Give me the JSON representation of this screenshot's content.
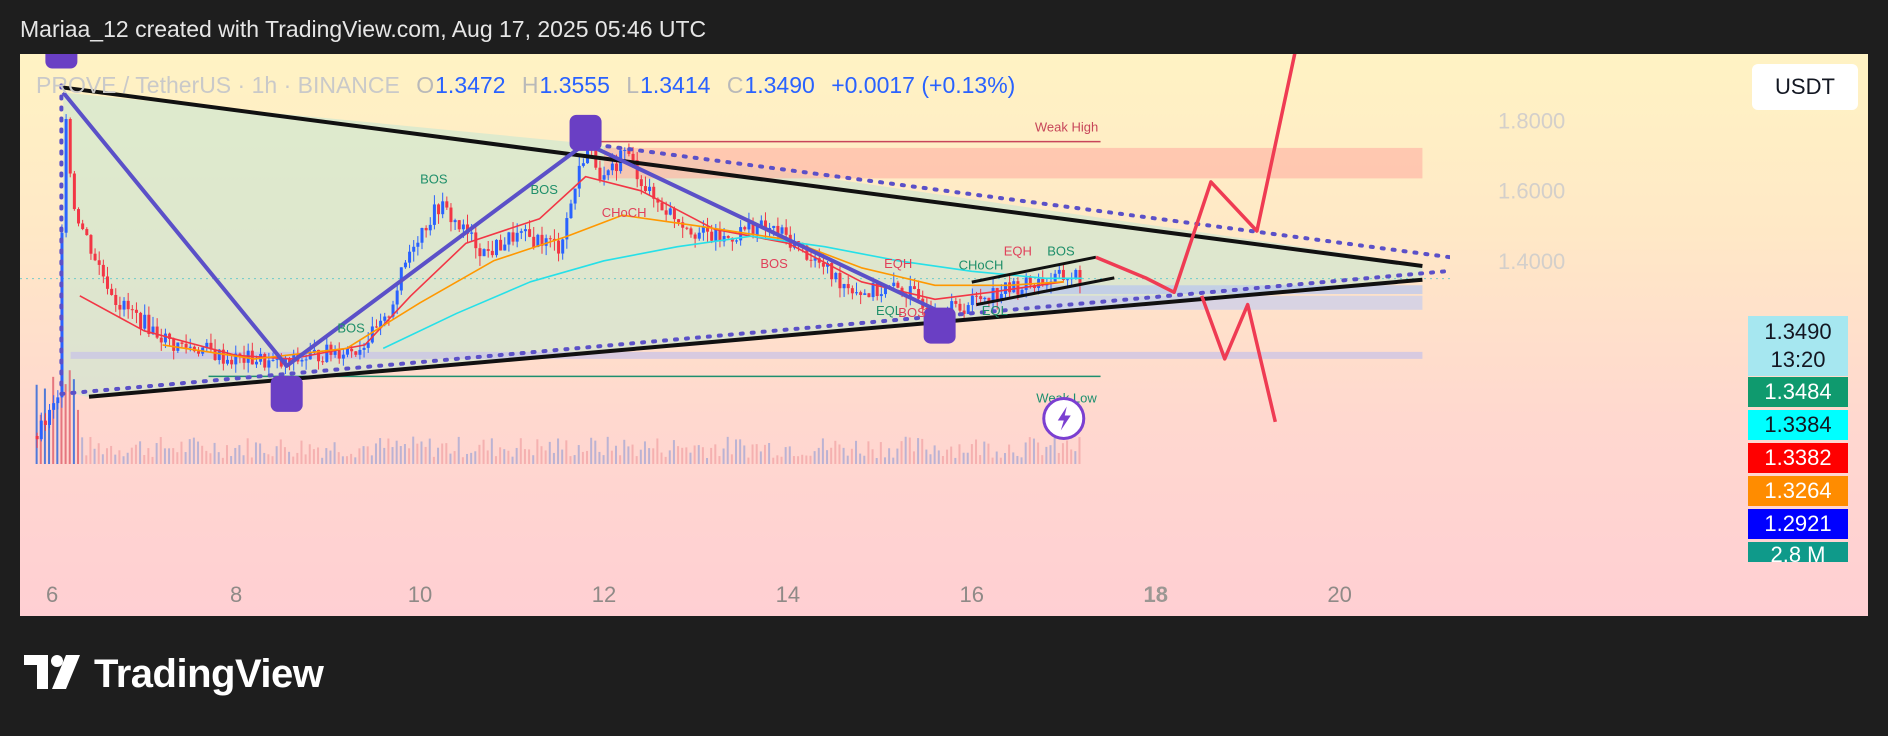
{
  "header": {
    "title": "Mariaa_12 created with TradingView.com, Aug 17, 2025 05:46 UTC"
  },
  "brand": {
    "name": "TradingView",
    "logo_icon": "tradingview-logo-icon"
  },
  "colors": {
    "bull": "#2962ff",
    "bear": "#f23645",
    "triangle_line": "#111111",
    "zigzag": "#5b50c8",
    "target_arrows": "#ef3b53",
    "ema_fast": "#f23645",
    "ema_mid": "#ff9800",
    "ema_slow": "#26e0e8"
  },
  "chart_data": {
    "type": "candlestick",
    "symbol": "PROVE / TetherUS · 1h · BINANCE",
    "legend": {
      "open_label": "O",
      "open": "1.3472",
      "high_label": "H",
      "high": "1.3555",
      "low_label": "L",
      "low": "1.3414",
      "close_label": "C",
      "close": "1.3490",
      "change": "+0.0017 (+0.13%)"
    },
    "quote_currency": "USDT",
    "x_ticks": [
      "6",
      "8",
      "10",
      "12",
      "14",
      "16",
      "18",
      "20"
    ],
    "x_range": [
      5.65,
      21.2
    ],
    "y_ticks": [
      "1.8000",
      "1.6000",
      "1.4000"
    ],
    "y_range": [
      0.82,
      1.99
    ],
    "price_tags": [
      {
        "value": "1.3490",
        "extra": "13:20",
        "bg": "#a6e7f0",
        "color": "#131722"
      },
      {
        "value": "1.3484",
        "bg": "#0f9a6e",
        "color": "#ffffff"
      },
      {
        "value": "1.3384",
        "bg": "#00ffff",
        "color": "#131722"
      },
      {
        "value": "1.3382",
        "bg": "#ff0000",
        "color": "#ffffff"
      },
      {
        "value": "1.3264",
        "bg": "#ff8c00",
        "color": "#ffffff"
      },
      {
        "value": "1.2921",
        "bg": "#0000ff",
        "color": "#ffffff"
      },
      {
        "value": "2.8 M",
        "bg": "#0f9a8a",
        "color": "#ffffff"
      }
    ],
    "price_path": [
      [
        5.82,
        0.9
      ],
      [
        6.05,
        1.0
      ],
      [
        6.12,
        1.88
      ],
      [
        6.2,
        1.58
      ],
      [
        6.3,
        1.5
      ],
      [
        6.5,
        1.38
      ],
      [
        6.7,
        1.28
      ],
      [
        7.0,
        1.22
      ],
      [
        7.3,
        1.16
      ],
      [
        7.6,
        1.15
      ],
      [
        7.9,
        1.12
      ],
      [
        8.2,
        1.12
      ],
      [
        8.45,
        1.1
      ],
      [
        8.7,
        1.12
      ],
      [
        9.0,
        1.14
      ],
      [
        9.3,
        1.15
      ],
      [
        9.6,
        1.22
      ],
      [
        9.9,
        1.45
      ],
      [
        10.2,
        1.56
      ],
      [
        10.4,
        1.5
      ],
      [
        10.7,
        1.42
      ],
      [
        11.0,
        1.47
      ],
      [
        11.3,
        1.46
      ],
      [
        11.5,
        1.44
      ],
      [
        11.8,
        1.74
      ],
      [
        12.0,
        1.62
      ],
      [
        12.2,
        1.72
      ],
      [
        12.5,
        1.58
      ],
      [
        12.8,
        1.52
      ],
      [
        13.0,
        1.48
      ],
      [
        13.3,
        1.46
      ],
      [
        13.6,
        1.5
      ],
      [
        13.9,
        1.48
      ],
      [
        14.2,
        1.42
      ],
      [
        14.5,
        1.35
      ],
      [
        14.8,
        1.31
      ],
      [
        15.2,
        1.32
      ],
      [
        15.5,
        1.28
      ],
      [
        15.7,
        1.26
      ],
      [
        15.9,
        1.27
      ],
      [
        16.1,
        1.3
      ],
      [
        16.4,
        1.32
      ],
      [
        16.7,
        1.34
      ],
      [
        16.95,
        1.35
      ],
      [
        17.1,
        1.36
      ],
      [
        17.2,
        1.349
      ]
    ],
    "ema_lines": [
      {
        "name": "ema-fast",
        "color": "#f23645",
        "points": [
          [
            6.3,
            1.3
          ],
          [
            7.0,
            1.2
          ],
          [
            8.0,
            1.13
          ],
          [
            8.6,
            1.12
          ],
          [
            9.4,
            1.16
          ],
          [
            9.9,
            1.3
          ],
          [
            10.5,
            1.45
          ],
          [
            11.3,
            1.52
          ],
          [
            11.8,
            1.64
          ],
          [
            12.4,
            1.6
          ],
          [
            13.2,
            1.49
          ],
          [
            14.0,
            1.45
          ],
          [
            14.8,
            1.34
          ],
          [
            15.6,
            1.29
          ],
          [
            16.2,
            1.31
          ],
          [
            17.0,
            1.34
          ]
        ]
      },
      {
        "name": "ema-mid",
        "color": "#ff9800",
        "points": [
          [
            7.2,
            1.16
          ],
          [
            8.2,
            1.12
          ],
          [
            9.2,
            1.15
          ],
          [
            10.0,
            1.28
          ],
          [
            10.8,
            1.4
          ],
          [
            11.6,
            1.47
          ],
          [
            12.2,
            1.53
          ],
          [
            13.0,
            1.5
          ],
          [
            14.0,
            1.46
          ],
          [
            14.8,
            1.38
          ],
          [
            15.6,
            1.33
          ],
          [
            16.4,
            1.33
          ],
          [
            17.0,
            1.34
          ]
        ]
      },
      {
        "name": "ema-slow",
        "color": "#26e0e8",
        "points": [
          [
            9.6,
            1.15
          ],
          [
            10.4,
            1.25
          ],
          [
            11.2,
            1.34
          ],
          [
            12.0,
            1.4
          ],
          [
            12.8,
            1.44
          ],
          [
            13.6,
            1.47
          ],
          [
            14.4,
            1.44
          ],
          [
            15.2,
            1.4
          ],
          [
            16.0,
            1.37
          ],
          [
            16.8,
            1.35
          ],
          [
            17.2,
            1.35
          ]
        ]
      }
    ],
    "triangle": {
      "upper": [
        [
          6.1,
          1.895
        ],
        [
          20.9,
          1.385
        ]
      ],
      "lower": [
        [
          6.4,
          1.012
        ],
        [
          20.9,
          1.346
        ]
      ],
      "upper_dotted": [
        [
          11.8,
          1.735
        ],
        [
          21.2,
          1.41
        ]
      ],
      "lower_dotted": [
        [
          6.1,
          1.02
        ],
        [
          21.2,
          1.371
        ]
      ]
    },
    "zigzag": [
      [
        6.12,
        1.88
      ],
      [
        8.55,
        1.1
      ],
      [
        11.8,
        1.735
      ],
      [
        15.65,
        1.255
      ]
    ],
    "pivot_markers": [
      [
        6.1,
        2.0
      ],
      [
        8.55,
        1.02
      ],
      [
        11.8,
        1.765
      ],
      [
        15.65,
        1.215
      ]
    ],
    "channel": {
      "top": [
        [
          16.0,
          1.339
        ],
        [
          17.35,
          1.41
        ]
      ],
      "bottom": [
        [
          16.05,
          1.275
        ],
        [
          17.55,
          1.351
        ]
      ]
    },
    "target_arrows": [
      [
        [
          17.35,
          1.41
        ],
        [
          17.9,
          1.35
        ],
        [
          18.2,
          1.31
        ],
        [
          18.6,
          1.625
        ],
        [
          19.1,
          1.485
        ],
        [
          19.6,
          2.1
        ]
      ],
      [
        [
          18.5,
          1.3
        ],
        [
          18.75,
          1.12
        ],
        [
          19.0,
          1.275
        ],
        [
          19.3,
          0.94
        ]
      ]
    ],
    "zones": [
      {
        "name": "weak-high-zone",
        "x": [
          12.0,
          20.9
        ],
        "y": [
          1.635,
          1.722
        ],
        "color": "#ffb8a6"
      },
      {
        "name": "supply-box",
        "x": [
          16.0,
          20.9
        ],
        "y": [
          1.305,
          1.33
        ],
        "color": "#b8c6f0"
      },
      {
        "name": "supply-box-2",
        "x": [
          16.0,
          20.9
        ],
        "y": [
          1.26,
          1.3
        ],
        "color": "#c7cdee"
      },
      {
        "name": "demand-box",
        "x": [
          6.2,
          20.9
        ],
        "y": [
          1.12,
          1.14
        ],
        "color": "#c8c2e8"
      }
    ],
    "weak_high": {
      "label": "Weak High",
      "y": 1.74,
      "x": [
        11.9,
        17.4
      ],
      "color": "#c7465a"
    },
    "weak_low": {
      "label": "Weak Low",
      "y": 1.07,
      "x": [
        7.7,
        17.4
      ],
      "color": "#1d8f6e"
    },
    "annotations": [
      {
        "text": "BOS",
        "x": 10.15,
        "y": 1.62,
        "color": "#1f8f6a"
      },
      {
        "text": "BOS",
        "x": 11.35,
        "y": 1.59,
        "color": "#1f8f6a"
      },
      {
        "text": "BOS",
        "x": 9.25,
        "y": 1.195,
        "color": "#1f8f6a"
      },
      {
        "text": "CHoCH",
        "x": 12.22,
        "y": 1.525,
        "color": "#e0405a"
      },
      {
        "text": "BOS",
        "x": 13.85,
        "y": 1.38,
        "color": "#e0405a"
      },
      {
        "text": "EQH",
        "x": 15.2,
        "y": 1.38,
        "color": "#e0405a"
      },
      {
        "text": "EQH",
        "x": 16.5,
        "y": 1.415,
        "color": "#e0405a"
      },
      {
        "text": "BOS",
        "x": 16.97,
        "y": 1.415,
        "color": "#1f8f6a"
      },
      {
        "text": "CHoCH",
        "x": 16.1,
        "y": 1.375,
        "color": "#1f8f6a"
      },
      {
        "text": "EQL",
        "x": 15.1,
        "y": 1.245,
        "color": "#1f8f6a"
      },
      {
        "text": "BOS",
        "x": 15.35,
        "y": 1.24,
        "color": "#e0405a"
      },
      {
        "text": "EQL",
        "x": 16.25,
        "y": 1.245,
        "color": "#1f8f6a"
      }
    ]
  }
}
